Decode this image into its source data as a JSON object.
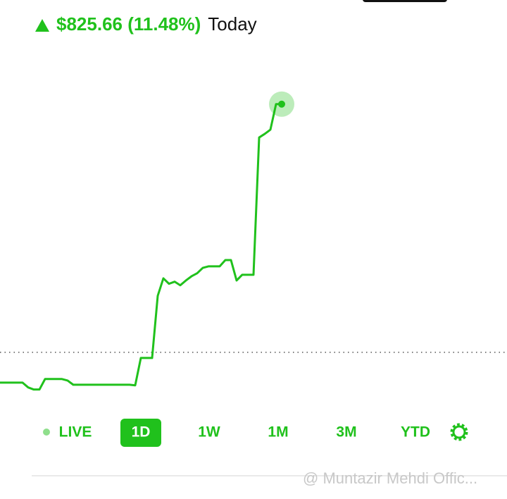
{
  "header": {
    "change": "$825.66 (11.48%)",
    "period": "Today"
  },
  "chart_data": {
    "type": "line",
    "values": [
      7091,
      7091,
      7091,
      7091,
      7091,
      7075,
      7068,
      7068,
      7103,
      7103,
      7103,
      7103,
      7098,
      7084,
      7084,
      7084,
      7084,
      7084,
      7084,
      7084,
      7084,
      7084,
      7084,
      7084,
      7082,
      7173,
      7173,
      7173,
      7380,
      7438,
      7420,
      7427,
      7415,
      7431,
      7445,
      7455,
      7473,
      7478,
      7478,
      7478,
      7499,
      7499,
      7431,
      7450,
      7450,
      7450,
      7907,
      7919,
      7933,
      8018,
      8018
    ],
    "color": "#20c11c",
    "ylim": [
      6957,
      8130
    ],
    "reference_line": 7192
  },
  "ranges": [
    "LIVE",
    "1D",
    "1W",
    "1M",
    "3M",
    "YTD"
  ],
  "selected_range": "1D",
  "watermark": "@ Muntazir Mehdi Offic..."
}
